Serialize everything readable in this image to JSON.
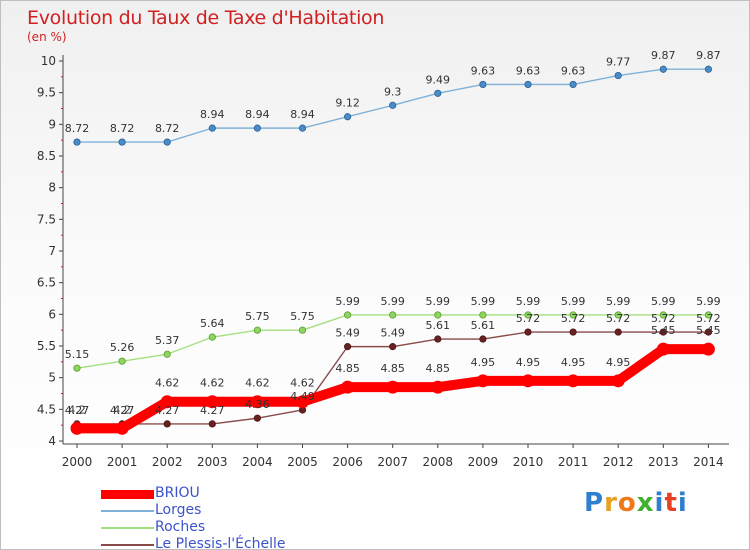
{
  "title": "Evolution du Taux de Taxe d'Habitation",
  "subtitle": "(en %)",
  "chart_data": {
    "type": "line",
    "x": [
      2000,
      2001,
      2002,
      2003,
      2004,
      2005,
      2006,
      2007,
      2008,
      2009,
      2010,
      2011,
      2012,
      2013,
      2014
    ],
    "x_tick_labels": [
      "2000",
      "2001",
      "2002",
      "2003",
      "2004",
      "2005",
      "2006",
      "2007",
      "2008",
      "2009",
      "2010",
      "2011",
      "2012",
      "2013",
      "2014"
    ],
    "ylim": [
      4,
      10
    ],
    "y_ticks": [
      4,
      4.5,
      5,
      5.5,
      6,
      6.5,
      7,
      7.5,
      8,
      8.5,
      9,
      9.5,
      10
    ],
    "y_tick_labels": [
      "4",
      "4.5",
      "5",
      "5.5",
      "6",
      "6.5",
      "7",
      "7.5",
      "8",
      "8.5",
      "9",
      "9.5",
      "10"
    ],
    "grid": false,
    "legend_position": "bottom-left",
    "series": [
      {
        "name": "BRIOU",
        "color": "#ff0000",
        "values": [
          4.2,
          4.2,
          4.62,
          4.62,
          4.62,
          4.62,
          4.85,
          4.85,
          4.85,
          4.95,
          4.95,
          4.95,
          4.95,
          5.45,
          5.45
        ],
        "labels": [
          "4.2",
          "4.2",
          "4.62",
          "4.62",
          "4.62",
          "4.62",
          "4.85",
          "4.85",
          "4.85",
          "4.95",
          "4.95",
          "4.95",
          "4.95",
          "5.45",
          "5.45"
        ]
      },
      {
        "name": "Lorges",
        "color": "#7fb1d8",
        "values": [
          8.72,
          8.72,
          8.72,
          8.94,
          8.94,
          8.94,
          9.12,
          9.3,
          9.49,
          9.63,
          9.63,
          9.63,
          9.77,
          9.87,
          9.87
        ],
        "labels": [
          "8.72",
          "8.72",
          "8.72",
          "8.94",
          "8.94",
          "8.94",
          "9.12",
          "9.3",
          "9.49",
          "9.63",
          "9.63",
          "9.63",
          "9.77",
          "9.87",
          "9.87"
        ]
      },
      {
        "name": "Roches",
        "color": "#a4df7f",
        "values": [
          5.15,
          5.26,
          5.37,
          5.64,
          5.75,
          5.75,
          5.99,
          5.99,
          5.99,
          5.99,
          5.99,
          5.99,
          5.99,
          5.99,
          5.99
        ],
        "labels": [
          "5.15",
          "5.26",
          "5.37",
          "5.64",
          "5.75",
          "5.75",
          "5.99",
          "5.99",
          "5.99",
          "5.99",
          "5.99",
          "5.99",
          "5.99",
          "5.99",
          "5.99"
        ]
      },
      {
        "name": "Le Plessis-l'Échelle",
        "color": "#8a4b4b",
        "values": [
          4.27,
          4.27,
          4.27,
          4.27,
          4.36,
          4.49,
          5.49,
          5.49,
          5.61,
          5.61,
          5.72,
          5.72,
          5.72,
          5.72,
          5.72
        ],
        "labels": [
          "4.27",
          "4.27",
          "4.27",
          "4.27",
          "4.36",
          "4.49",
          "5.49",
          "5.49",
          "5.61",
          "5.61",
          "5.72",
          "5.72",
          "5.72",
          "5.72",
          "5.72"
        ]
      }
    ]
  },
  "logo": {
    "letters": [
      "P",
      "r",
      "o",
      "x",
      "i",
      "t",
      "i"
    ],
    "colors": [
      "#2f7fd0",
      "#e8a020",
      "#f07818",
      "#40b030",
      "#2f7fd0",
      "#e84020",
      "#2f7fd0"
    ]
  }
}
